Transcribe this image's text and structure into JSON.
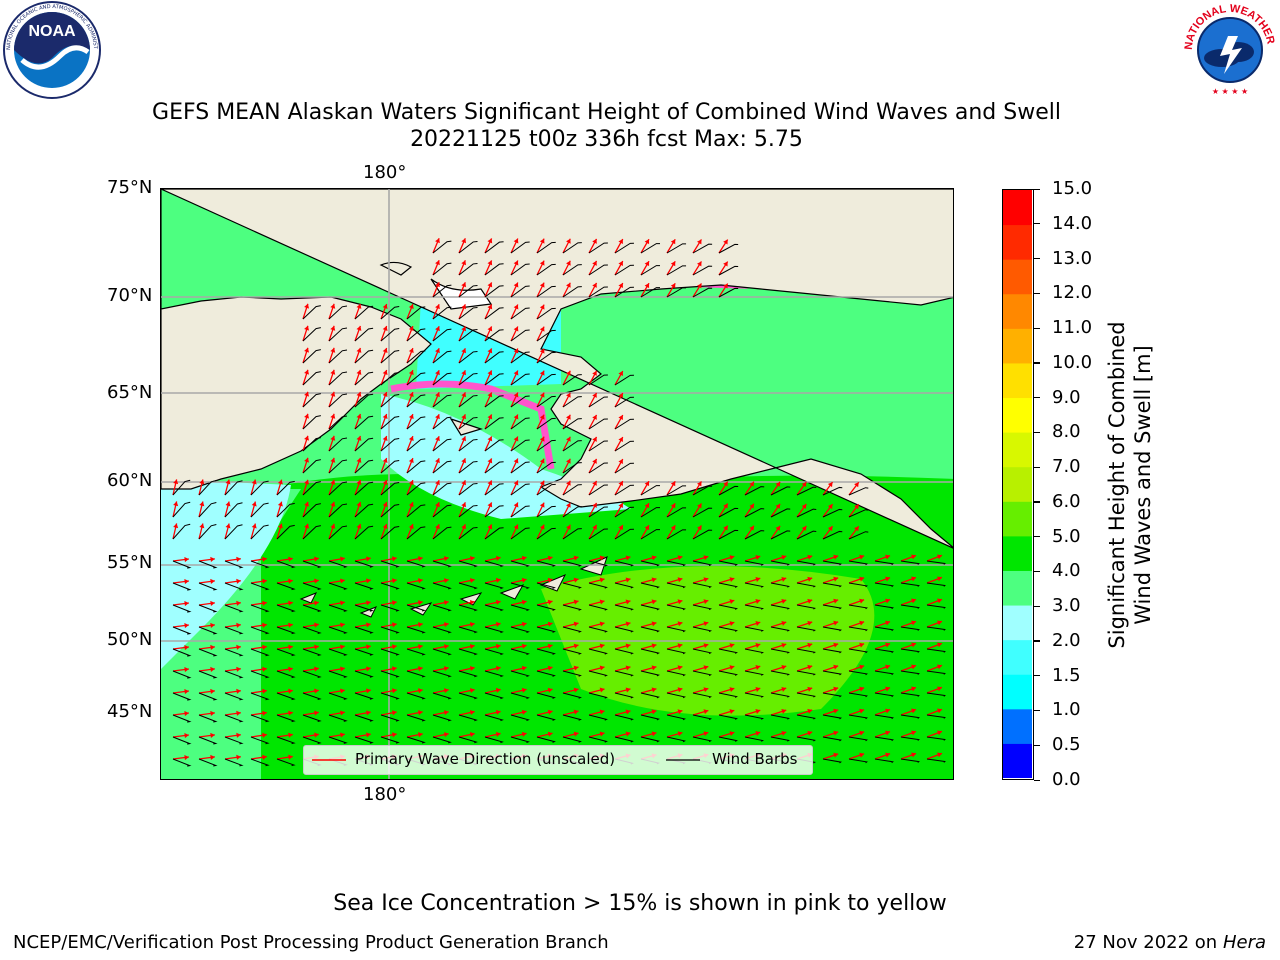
{
  "title": {
    "line1": "GEFS MEAN Alaskan Waters Significant Height of Combined Wind Waves and Swell",
    "line2": "20221125 t00z 336h fcst    Max: 5.75"
  },
  "logos": {
    "noaa_text": "NOAA",
    "noaa_ring": "NATIONAL OCEANIC AND ATMOSPHERIC ADMINISTRATION · U.S. DEPARTMENT OF COMMERCE",
    "nws_ring": "NATIONAL WEATHER SERVICE"
  },
  "map": {
    "lat_labels": [
      "75°N",
      "70°N",
      "65°N",
      "60°N",
      "55°N",
      "50°N",
      "45°N"
    ],
    "lon_label_top": "180°",
    "lon_label_bottom": "180°",
    "legend": {
      "wave_label": "Primary Wave Direction (unscaled)",
      "barb_label": "Wind Barbs"
    },
    "land_color": "#efecdc",
    "wave_arrow_color": "#ff0000",
    "barb_color": "#000000"
  },
  "colorbar": {
    "label_line1": "Significant Height of Combined",
    "label_line2": "Wind Waves and Swell [m]",
    "ticks": [
      "0.0",
      "0.5",
      "1.0",
      "1.5",
      "2.0",
      "3.0",
      "4.0",
      "5.0",
      "6.0",
      "7.0",
      "8.0",
      "9.0",
      "10.0",
      "11.0",
      "12.0",
      "13.0",
      "14.0",
      "15.0"
    ],
    "colors": [
      "#0000ff",
      "#0070ff",
      "#00ffff",
      "#40ffff",
      "#a0ffff",
      "#4dff80",
      "#00e600",
      "#66ee00",
      "#b8f000",
      "#d8f800",
      "#ffff00",
      "#ffe000",
      "#ffb000",
      "#ff8800",
      "#ff5a00",
      "#ff2a00",
      "#ff0000"
    ]
  },
  "footer": {
    "ice_note": "Sea Ice Concentration > 15% is shown in pink to yellow",
    "left": "NCEP/EMC/Verification Post Processing Product Generation Branch",
    "date": "27 Nov 2022 on",
    "host": "Hera"
  }
}
